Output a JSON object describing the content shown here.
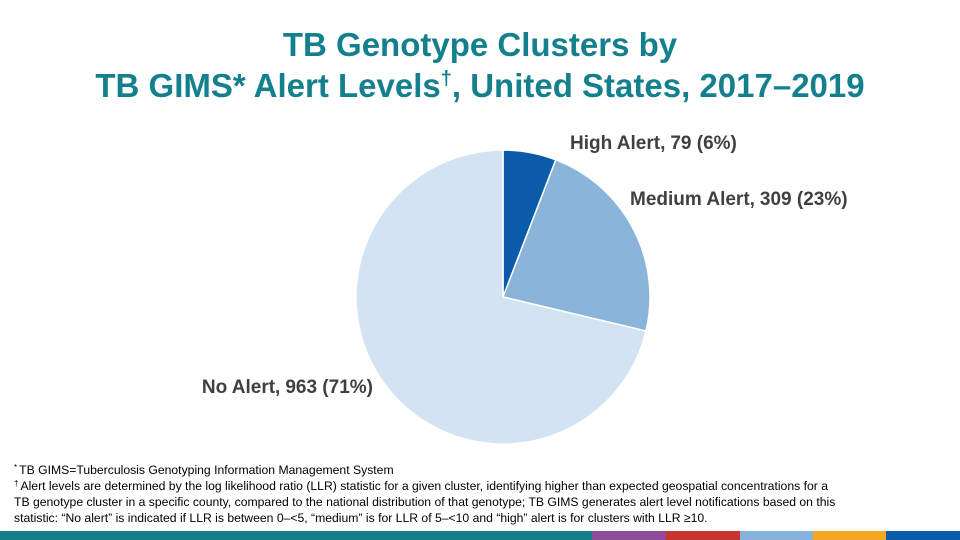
{
  "chart_data": {
    "type": "pie",
    "title": {
      "line1": "TB Genotype Clusters by",
      "line2": [
        "TB GIMS* Alert Levels",
        "†",
        ", United States, 2017–2019"
      ]
    },
    "categories": [
      "High Alert,",
      "Medium Alert,",
      "No Alert,"
    ],
    "values": [
      79,
      309,
      963
    ],
    "value_labels": [
      "79 (6%)",
      "309 (23%)",
      "963 (71%)"
    ],
    "colors": [
      "#0a5ca8",
      "#8ab4da",
      "#d4e3f2"
    ],
    "footnotes": [
      {
        "mark": "*",
        "lines": [
          "TB GIMS=Tuberculosis Genotyping Information Management System"
        ]
      },
      {
        "mark": "†",
        "lines": [
          "Alert levels are determined by the log likelihood ratio (LLR) statistic for a given cluster, identifying higher than expected geospatial concentrations for a",
          "TB genotype cluster in a specific county, compared to the national distribution of that genotype; TB GIMS generates alert level notifications based on this",
          "statistic: “No alert” is indicated if LLR  is between 0–<5, “medium” is for LLR of 5–<10  and “high” alert is for clusters with LLR ≥10."
        ]
      }
    ]
  }
}
